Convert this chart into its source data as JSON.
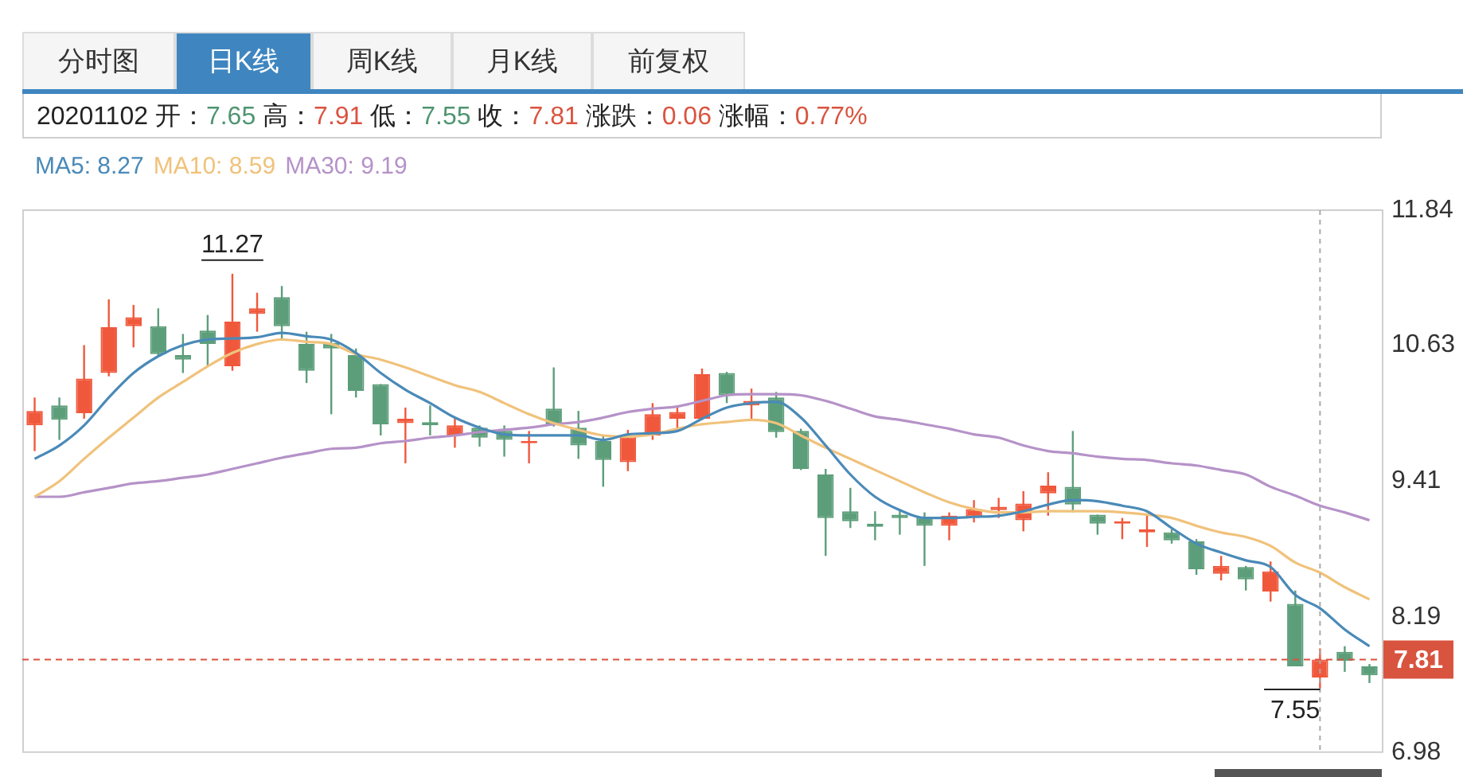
{
  "chart_data": {
    "type": "candlestick",
    "subtitle": "20201102 开：7.65 高：7.91 低：7.55 收：7.81 涨跌：0.06 涨幅：0.77%",
    "annotations": [
      "分时图",
      "日K线",
      "周K线",
      "月K线",
      "前复权",
      {
        "text": "11.27",
        "y": 11.27
      },
      "7.55"
    ],
    "categories": [
      null,
      null,
      null,
      null,
      null,
      null,
      null,
      null,
      null,
      null,
      null,
      null,
      null,
      null,
      null,
      null,
      null,
      null,
      null,
      null,
      null,
      null,
      null,
      null,
      null,
      null,
      null,
      null,
      null,
      null,
      null,
      null,
      null,
      null,
      null,
      null,
      null,
      null,
      null,
      null,
      null,
      null,
      null,
      null,
      null,
      null,
      null,
      null,
      null,
      null,
      null,
      null,
      null,
      null,
      null
    ],
    "ohlc": [
      [
        9.91,
        10.16,
        9.68,
        10.04
      ],
      [
        10.09,
        10.16,
        9.78,
        9.96
      ],
      [
        10.02,
        10.63,
        9.97,
        10.33
      ],
      [
        10.38,
        11.04,
        10.35,
        10.79
      ],
      [
        10.8,
        10.99,
        10.61,
        10.88
      ],
      [
        10.8,
        10.96,
        10.53,
        10.55
      ],
      [
        10.54,
        10.73,
        10.38,
        10.5
      ],
      [
        10.76,
        10.9,
        10.44,
        10.64
      ],
      [
        10.44,
        11.27,
        10.4,
        10.84
      ],
      [
        10.91,
        11.1,
        10.75,
        10.96
      ],
      [
        11.06,
        11.16,
        10.69,
        10.8
      ],
      [
        10.64,
        10.75,
        10.29,
        10.4
      ],
      [
        10.65,
        10.73,
        10.01,
        10.6
      ],
      [
        10.54,
        10.6,
        10.16,
        10.22
      ],
      [
        10.28,
        10.28,
        9.82,
        9.92
      ],
      [
        9.93,
        10.07,
        9.57,
        9.97
      ],
      [
        9.94,
        10.09,
        9.82,
        9.91
      ],
      [
        9.82,
        9.97,
        9.71,
        9.91
      ],
      [
        9.89,
        9.91,
        9.72,
        9.8
      ],
      [
        9.86,
        9.91,
        9.63,
        9.78
      ],
      [
        9.75,
        9.86,
        9.57,
        9.77
      ],
      [
        10.06,
        10.43,
        9.9,
        9.92
      ],
      [
        9.89,
        10.04,
        9.61,
        9.73
      ],
      [
        9.77,
        9.82,
        9.36,
        9.6
      ],
      [
        9.58,
        9.87,
        9.5,
        9.81
      ],
      [
        9.82,
        10.11,
        9.78,
        10.01
      ],
      [
        9.97,
        10.09,
        9.85,
        10.03
      ],
      [
        9.97,
        10.42,
        9.96,
        10.37
      ],
      [
        10.38,
        10.39,
        10.11,
        10.18
      ],
      [
        10.09,
        10.24,
        9.96,
        10.13
      ],
      [
        10.16,
        10.21,
        9.8,
        9.85
      ],
      [
        9.86,
        9.88,
        9.51,
        9.52
      ],
      [
        9.47,
        9.52,
        8.74,
        9.08
      ],
      [
        9.14,
        9.35,
        8.99,
        9.05
      ],
      [
        9.03,
        9.14,
        8.88,
        9.0
      ],
      [
        9.11,
        9.16,
        8.93,
        9.08
      ],
      [
        9.09,
        9.13,
        8.65,
        9.01
      ],
      [
        9.01,
        9.13,
        8.88,
        9.1
      ],
      [
        9.09,
        9.24,
        9.04,
        9.16
      ],
      [
        9.15,
        9.26,
        9.08,
        9.18
      ],
      [
        9.06,
        9.32,
        8.96,
        9.21
      ],
      [
        9.3,
        9.49,
        9.1,
        9.37
      ],
      [
        9.36,
        9.86,
        9.13,
        9.2
      ],
      [
        9.11,
        9.11,
        8.93,
        9.03
      ],
      [
        9.03,
        9.08,
        8.89,
        9.05
      ],
      [
        8.95,
        9.1,
        8.82,
        8.98
      ],
      [
        8.95,
        8.98,
        8.85,
        8.88
      ],
      [
        8.87,
        8.89,
        8.57,
        8.62
      ],
      [
        8.58,
        8.74,
        8.52,
        8.65
      ],
      [
        8.64,
        8.65,
        8.43,
        8.53
      ],
      [
        8.42,
        8.69,
        8.33,
        8.6
      ],
      [
        8.31,
        8.43,
        7.75,
        7.75
      ],
      [
        7.65,
        7.91,
        7.55,
        7.81
      ],
      [
        7.88,
        7.93,
        7.7,
        7.8
      ],
      [
        7.75,
        7.77,
        7.6,
        7.67
      ]
    ],
    "colors": [
      "#f0583c",
      "#5c9e7a",
      "#f0583c",
      "#f0583c",
      "#f0583c",
      "#5c9e7a",
      "#5c9e7a",
      "#5c9e7a",
      "#f0583c",
      "#f0583c",
      "#5c9e7a",
      "#5c9e7a",
      "#5c9e7a",
      "#5c9e7a",
      "#5c9e7a",
      "#f0583c",
      "#5c9e7a",
      "#f0583c",
      "#5c9e7a",
      "#5c9e7a",
      "#f0583c",
      "#5c9e7a",
      "#5c9e7a",
      "#5c9e7a",
      "#f0583c",
      "#f0583c",
      "#f0583c",
      "#f0583c",
      "#5c9e7a",
      "#f0583c",
      "#5c9e7a",
      "#5c9e7a",
      "#5c9e7a",
      "#5c9e7a",
      "#5c9e7a",
      "#5c9e7a",
      "#5c9e7a",
      "#f0583c",
      "#f0583c",
      "#f0583c",
      "#f0583c",
      "#f0583c",
      "#5c9e7a",
      "#5c9e7a",
      "#f0583c",
      "#f0583c",
      "#5c9e7a",
      "#5c9e7a",
      "#f0583c",
      "#5c9e7a",
      "#f0583c",
      "#5c9e7a",
      "#f0583c",
      "#5c9e7a",
      "#5c9e7a"
    ],
    "series": [
      {
        "name": "MA5: 8.27",
        "type": "line",
        "color": "#4a8ab8",
        "values": [
          9.61,
          9.73,
          9.91,
          10.16,
          10.38,
          10.53,
          10.63,
          10.68,
          10.69,
          10.7,
          10.74,
          10.71,
          10.68,
          10.56,
          10.38,
          10.23,
          10.11,
          9.98,
          9.89,
          9.83,
          9.82,
          9.82,
          9.82,
          9.78,
          9.83,
          9.84,
          9.86,
          9.97,
          10.07,
          10.11,
          10.12,
          9.98,
          9.73,
          9.47,
          9.27,
          9.15,
          9.08,
          9.08,
          9.09,
          9.1,
          9.14,
          9.2,
          9.24,
          9.23,
          9.19,
          9.14,
          8.99,
          8.85,
          8.77,
          8.7,
          8.64,
          8.39,
          8.27,
          8.08,
          7.93
        ]
      },
      {
        "name": "MA10: 8.59",
        "type": "line",
        "color": "#f0c27b",
        "values": [
          9.27,
          9.41,
          9.61,
          9.8,
          9.98,
          10.16,
          10.3,
          10.44,
          10.56,
          10.64,
          10.68,
          10.66,
          10.64,
          10.55,
          10.5,
          10.43,
          10.35,
          10.27,
          10.21,
          10.11,
          10.01,
          9.93,
          9.87,
          9.82,
          9.81,
          9.83,
          9.88,
          9.92,
          9.94,
          9.96,
          9.93,
          9.82,
          9.71,
          9.61,
          9.51,
          9.41,
          9.31,
          9.22,
          9.16,
          9.13,
          9.13,
          9.14,
          9.14,
          9.14,
          9.13,
          9.11,
          9.08,
          9.01,
          8.95,
          8.91,
          8.83,
          8.68,
          8.59,
          8.46,
          8.35
        ]
      },
      {
        "name": "MA30: 9.19",
        "type": "line",
        "color": "#b592c8",
        "values": [
          9.27,
          9.27,
          9.31,
          9.35,
          9.39,
          9.41,
          9.44,
          9.47,
          9.52,
          9.57,
          9.62,
          9.66,
          9.7,
          9.71,
          9.75,
          9.77,
          9.8,
          9.82,
          9.85,
          9.87,
          9.89,
          9.92,
          9.94,
          9.98,
          10.03,
          10.06,
          10.08,
          10.13,
          10.18,
          10.19,
          10.19,
          10.18,
          10.13,
          10.06,
          9.99,
          9.96,
          9.92,
          9.88,
          9.83,
          9.8,
          9.73,
          9.68,
          9.66,
          9.63,
          9.61,
          9.6,
          9.57,
          9.55,
          9.51,
          9.47,
          9.36,
          9.28,
          9.19,
          9.13,
          9.06
        ]
      }
    ],
    "ylim": [
      6.98,
      11.84
    ],
    "yticks": [
      6.98,
      8.19,
      9.41,
      10.63,
      11.84
    ],
    "ref_lines": [
      {
        "axis": "y",
        "value": 7.81,
        "label": "7.81",
        "color": "#d9543f",
        "line_style": "dashed"
      }
    ],
    "tick_labels": "y",
    "legend": "top left",
    "marker": "none",
    "line_style": "solid"
  }
}
